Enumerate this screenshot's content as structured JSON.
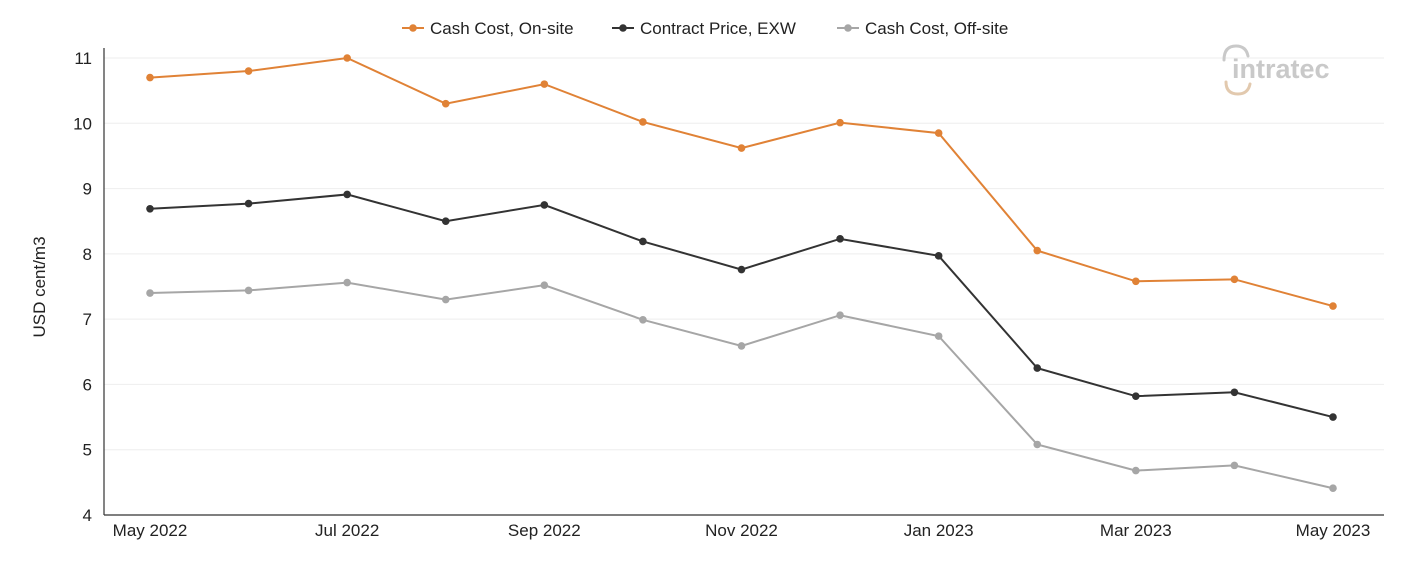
{
  "brand": {
    "logo_text": "intratec",
    "logo_color": "#c9c9c9",
    "logo_accent": "#e2c9ae"
  },
  "colors": {
    "on_site": "#e08236",
    "exw": "#333333",
    "off_site": "#a6a6a6",
    "grid": "#eeeeee",
    "axis": "#333333"
  },
  "chart_data": {
    "type": "line",
    "title": "",
    "xlabel": "",
    "ylabel": "USD cent/m3",
    "ylim": [
      4,
      11
    ],
    "yticks": [
      4,
      5,
      6,
      7,
      8,
      9,
      10,
      11
    ],
    "grid": true,
    "legend_position": "top-center",
    "x": [
      "May 2022",
      "Jun 2022",
      "Jul 2022",
      "Aug 2022",
      "Sep 2022",
      "Oct 2022",
      "Nov 2022",
      "Dec 2022",
      "Jan 2023",
      "Feb 2023",
      "Mar 2023",
      "Apr 2023",
      "May 2023"
    ],
    "x_tick_labels": [
      "May 2022",
      "",
      "Jul 2022",
      "",
      "Sep 2022",
      "",
      "Nov 2022",
      "",
      "Jan 2023",
      "",
      "Mar 2023",
      "",
      "May 2023"
    ],
    "series": [
      {
        "name": "Cash Cost, On-site",
        "color": "#e08236",
        "values": [
          10.7,
          10.8,
          11.0,
          10.3,
          10.6,
          10.02,
          9.62,
          10.01,
          9.85,
          8.05,
          7.58,
          7.61,
          7.2
        ]
      },
      {
        "name": "Contract Price, EXW",
        "color": "#333333",
        "values": [
          8.69,
          8.77,
          8.91,
          8.5,
          8.75,
          8.19,
          7.76,
          8.23,
          7.97,
          6.25,
          5.82,
          5.88,
          5.5
        ]
      },
      {
        "name": "Cash Cost, Off-site",
        "color": "#a6a6a6",
        "values": [
          7.4,
          7.44,
          7.56,
          7.3,
          7.52,
          6.99,
          6.59,
          7.06,
          6.74,
          5.08,
          4.68,
          4.76,
          4.41
        ]
      }
    ]
  }
}
